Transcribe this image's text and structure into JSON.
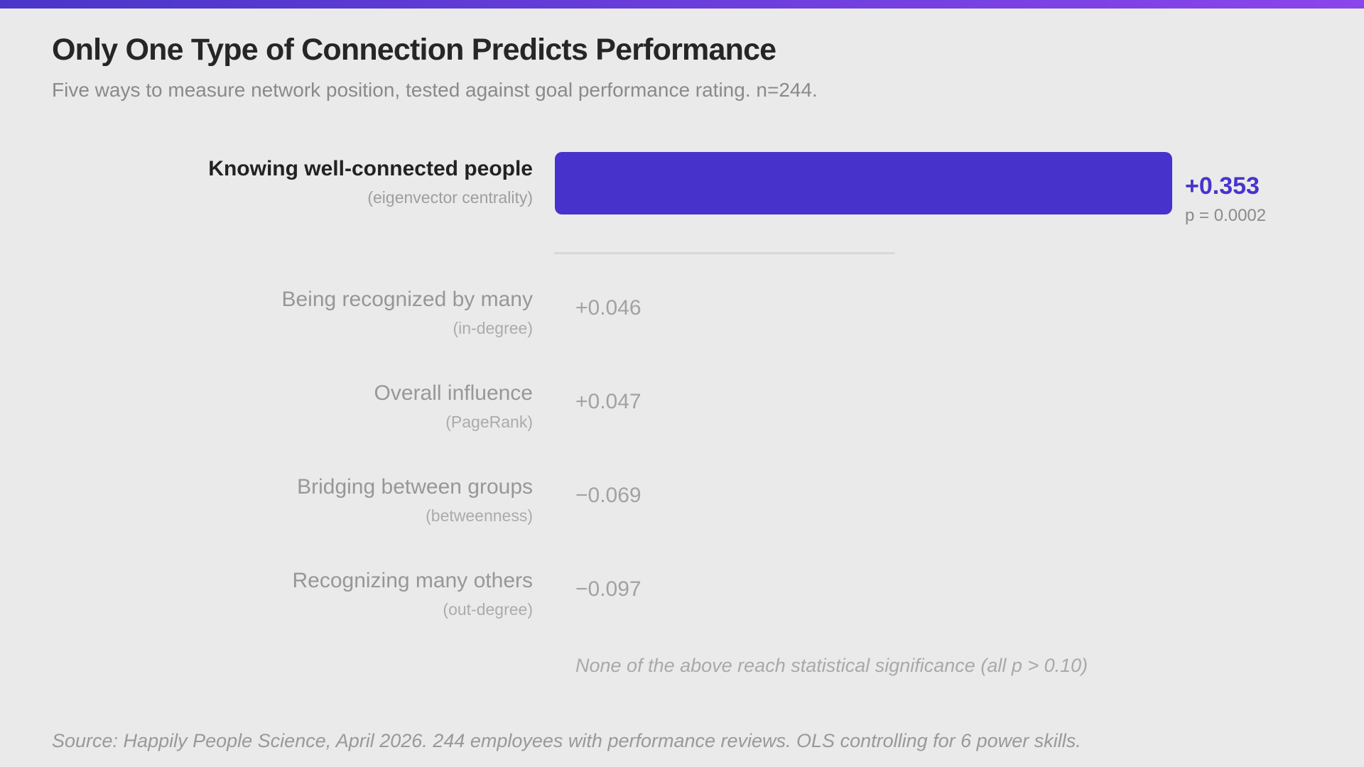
{
  "header": {
    "title": "Only One Type of Connection Predicts Performance",
    "subtitle": "Five ways to measure network position, tested against goal performance rating. n=244."
  },
  "chart_data": {
    "type": "bar",
    "orientation": "horizontal",
    "title": "Only One Type of Connection Predicts Performance",
    "subtitle": "Five ways to measure network position, tested against goal performance rating. n=244.",
    "xlim": [
      0,
      0.353
    ],
    "grid": false,
    "legend": false,
    "series": [
      {
        "label": "Knowing well-connected people",
        "sublabel": "(eigenvector centrality)",
        "value": 0.353,
        "display_value": "+0.353",
        "p_value_label": "p = 0.0002",
        "significant": true
      },
      {
        "label": "Being recognized by many",
        "sublabel": "(in-degree)",
        "value": 0.046,
        "display_value": "+0.046",
        "significant": false
      },
      {
        "label": "Overall influence",
        "sublabel": "(PageRank)",
        "value": 0.047,
        "display_value": "+0.047",
        "significant": false
      },
      {
        "label": "Bridging between groups",
        "sublabel": "(betweenness)",
        "value": -0.069,
        "display_value": "−0.069",
        "significant": false
      },
      {
        "label": "Recognizing many others",
        "sublabel": "(out-degree)",
        "value": -0.097,
        "display_value": "−0.097",
        "significant": false
      }
    ],
    "note": "None of the above reach statistical significance (all p > 0.10)",
    "source": "Source: Happily People Science, April 2026. 244 employees with performance reviews. OLS controlling for 6 power skills."
  },
  "colors": {
    "background": "#EAEAEA",
    "bar": "#4733CC",
    "value_highlight": "#4634CE",
    "accent_gradient_start": "#4936C8",
    "accent_gradient_end": "#8B45EB",
    "muted_text": "#9A9A9A"
  }
}
